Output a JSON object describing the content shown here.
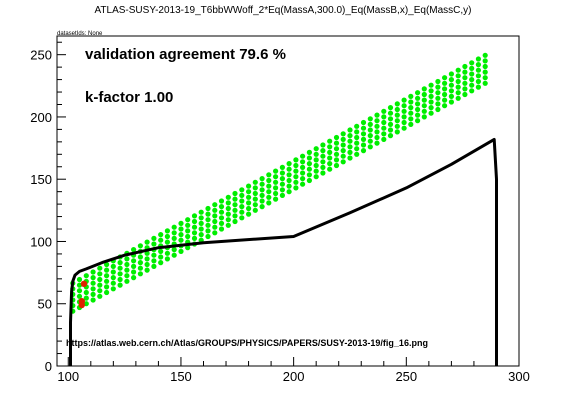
{
  "chart_data": {
    "type": "scatter",
    "title": "ATLAS-SUSY-2013-19_T6bbWWoff_2*Eq(MassA,300.0)_Eq(MassB,x)_Eq(MassC,y)",
    "dataset_label": "datasetIds: None",
    "annotation_agreement": "validation agreement 79.6 %",
    "annotation_kfactor": "k-factor 1.00",
    "url": "https://atlas.web.cern.ch/Atlas/GROUPS/PHYSICS/PAPERS/SUSY-2013-19/fig_16.png",
    "xlim": [
      95,
      300
    ],
    "ylim": [
      0,
      265
    ],
    "xticks": [
      "100",
      "150",
      "200",
      "250",
      "300"
    ],
    "xtick_values": [
      100,
      150,
      200,
      250,
      300
    ],
    "yticks": [
      "0",
      "50",
      "100",
      "150",
      "200",
      "250"
    ],
    "ytick_values": [
      0,
      50,
      100,
      150,
      200,
      250
    ],
    "grid": false,
    "colors": {
      "allowed": "#00ee00",
      "excluded": "#dd2200",
      "contour": "#000000"
    },
    "band": {
      "x_start": 102,
      "x_end": 287,
      "x_step": 3,
      "lower_offset": -58,
      "upper_offset": -34,
      "y_step": 4.5
    },
    "excluded_points": [
      {
        "x": 107,
        "y": 66
      },
      {
        "x": 106,
        "y": 52
      },
      {
        "x": 106,
        "y": 49
      }
    ],
    "contour": {
      "x": [
        101,
        101,
        101.5,
        102,
        103,
        105,
        108,
        115,
        125,
        140,
        160,
        200,
        225,
        250,
        270,
        289,
        290,
        290
      ],
      "y": [
        0,
        35,
        60,
        68,
        73,
        76,
        78,
        83,
        89,
        95,
        99,
        104,
        123,
        143,
        162,
        182,
        150,
        0
      ]
    }
  }
}
